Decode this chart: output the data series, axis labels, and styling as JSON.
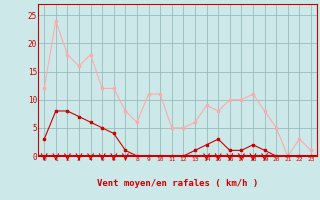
{
  "hours": [
    0,
    1,
    2,
    3,
    4,
    5,
    6,
    7,
    8,
    9,
    10,
    11,
    12,
    13,
    14,
    15,
    16,
    17,
    18,
    19,
    20,
    21,
    22,
    23
  ],
  "vent_moyen": [
    3,
    8,
    8,
    7,
    6,
    5,
    4,
    1,
    0,
    0,
    0,
    0,
    0,
    1,
    2,
    3,
    1,
    1,
    2,
    1,
    0,
    0,
    0,
    0
  ],
  "rafales": [
    12,
    24,
    18,
    16,
    18,
    12,
    12,
    8,
    6,
    11,
    11,
    5,
    5,
    6,
    9,
    8,
    10,
    10,
    11,
    8,
    5,
    0,
    3,
    1
  ],
  "bg_color": "#cce8e8",
  "grid_color": "#99bbbb",
  "line_color_moyen": "#cc0000",
  "line_color_rafales": "#ffaaaa",
  "arrow_color": "#cc0000",
  "xlabel": "Vent moyen/en rafales ( km/h )",
  "xlabel_color": "#cc0000",
  "yticks": [
    0,
    5,
    10,
    15,
    20,
    25
  ],
  "ylim": [
    0,
    27
  ],
  "xlim": [
    -0.5,
    23.5
  ],
  "tick_color": "#cc0000",
  "spine_color": "#cc0000",
  "arrow_hours": [
    0,
    1,
    2,
    3,
    4,
    5,
    6,
    7,
    14,
    15,
    16,
    17,
    18,
    19
  ]
}
